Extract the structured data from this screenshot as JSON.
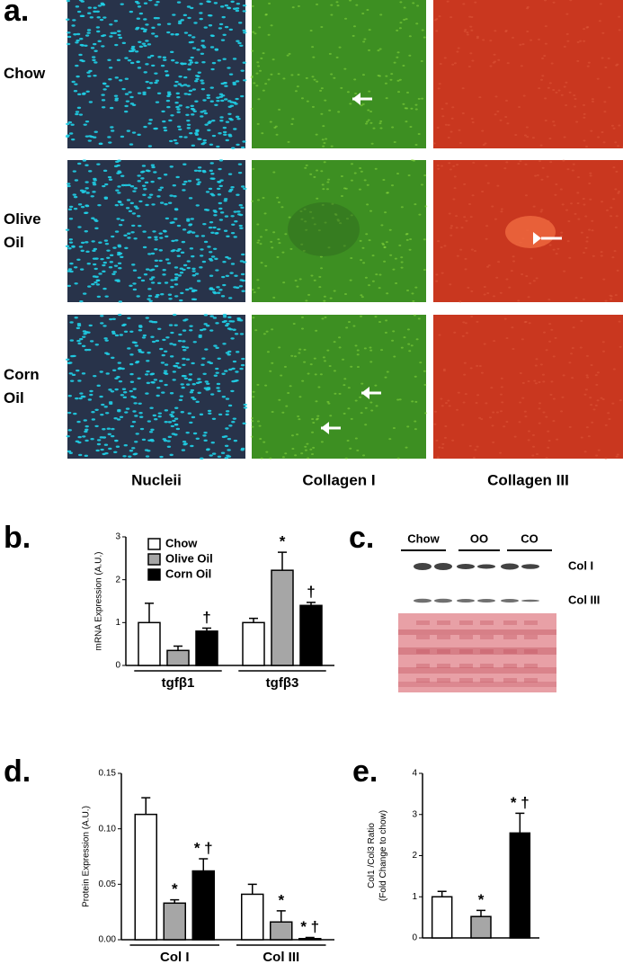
{
  "panel_a": {
    "label": "a.",
    "rows": [
      "Chow",
      "Olive Oil",
      "Corn Oil"
    ],
    "columns": [
      "Nucleii",
      "Collagen I",
      "Collagen III"
    ]
  },
  "panel_c": {
    "label": "c.",
    "groups": [
      "Chow",
      "OO",
      "CO"
    ],
    "bands": [
      "Col I",
      "Col III"
    ]
  },
  "chart_data": [
    {
      "type": "bar",
      "panel": "b.",
      "y_label": [
        "mRNA Expression (A.U.)"
      ],
      "categories": [
        "tgfβ1",
        "tgfβ3"
      ],
      "ylim": [
        0,
        3
      ],
      "yticks": [
        0,
        1,
        2,
        3
      ],
      "legend": "upper left",
      "series": [
        {
          "name": "Chow",
          "color": "#ffffff",
          "values": [
            1.0,
            1.0
          ],
          "errors": [
            0.45,
            0.1
          ],
          "annotations": [
            null,
            null
          ]
        },
        {
          "name": "Olive Oil",
          "color": "#a6a6a6",
          "values": [
            0.35,
            2.22
          ],
          "errors": [
            0.1,
            0.42
          ],
          "annotations": [
            null,
            "*"
          ]
        },
        {
          "name": "Corn Oil",
          "color": "#000000",
          "values": [
            0.8,
            1.4
          ],
          "errors": [
            0.07,
            0.07
          ],
          "annotations": [
            "†",
            "†"
          ]
        }
      ]
    },
    {
      "type": "bar",
      "panel": "d.",
      "y_label": [
        "Protein Expression (A.U.)"
      ],
      "categories": [
        "Col I",
        "Col III"
      ],
      "ylim": [
        0,
        0.15
      ],
      "yticks": [
        {
          "value": 0,
          "label": "0.00"
        },
        {
          "value": 0.05,
          "label": "0.05"
        },
        {
          "value": 0.1,
          "label": "0.10"
        },
        {
          "value": 0.15,
          "label": "0.15"
        }
      ],
      "series": [
        {
          "color": "#ffffff",
          "values": [
            0.113,
            0.041
          ],
          "errors": [
            0.015,
            0.009
          ],
          "annotations": [
            null,
            null
          ]
        },
        {
          "color": "#a6a6a6",
          "values": [
            0.033,
            0.016
          ],
          "errors": [
            0.003,
            0.01
          ],
          "annotations": [
            "*",
            "*"
          ]
        },
        {
          "color": "#000000",
          "values": [
            0.062,
            0.001
          ],
          "errors": [
            0.011,
            0.001
          ],
          "annotations": [
            "* †",
            "* †"
          ]
        }
      ]
    },
    {
      "type": "bar",
      "panel": "e.",
      "y_label": [
        "Col1 /Col3 Ratio",
        "(Fold Change to chow)"
      ],
      "categories": [
        null
      ],
      "ylim": [
        0,
        4
      ],
      "yticks": [
        0,
        1,
        2,
        3,
        4
      ],
      "series": [
        {
          "color": "#ffffff",
          "values": [
            1.0
          ],
          "errors": [
            0.13
          ],
          "annotations": [
            null
          ]
        },
        {
          "color": "#a6a6a6",
          "values": [
            0.52
          ],
          "errors": [
            0.15
          ],
          "annotations": [
            "*"
          ]
        },
        {
          "color": "#000000",
          "values": [
            2.55
          ],
          "errors": [
            0.48
          ],
          "annotations": [
            "* †"
          ]
        }
      ]
    }
  ]
}
